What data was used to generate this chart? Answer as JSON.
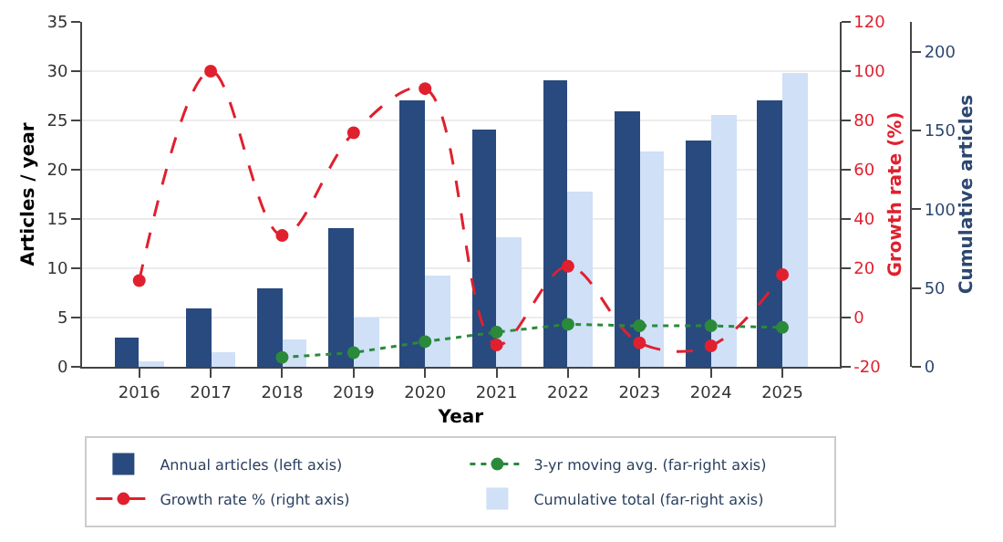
{
  "chart_data": {
    "type": "bar",
    "categories": [
      "2016",
      "2017",
      "2018",
      "2019",
      "2020",
      "2021",
      "2022",
      "2023",
      "2024",
      "2025"
    ],
    "xlabel": "Year",
    "ylabel": "Articles / year",
    "y2label": "Growth rate (%)",
    "y3label": "Cumulative articles",
    "series": [
      {
        "name": "Annual articles (left axis)",
        "color": "#284a7e",
        "values": [
          3,
          6,
          8,
          14,
          27,
          24,
          29,
          26,
          23,
          27
        ]
      },
      {
        "name": "Cumulative total (far-right axis)",
        "axis": "y3",
        "color": "#cfe0f7",
        "values": [
          3,
          9,
          17,
          31,
          58,
          82,
          111,
          137,
          160,
          187
        ]
      },
      {
        "name": "Growth rate % (right axis)",
        "type": "line",
        "axis": "y2",
        "color": "#e0202e",
        "marker": "circle",
        "line_style": "dashed",
        "values": [
          15,
          100,
          33.3,
          75,
          92.9,
          -11.1,
          20.8,
          -10.3,
          -11.5,
          17.4
        ]
      },
      {
        "name": "3-yr moving avg. (far-right axis)",
        "type": "line",
        "axis": "y3",
        "color": "#2a8a3a",
        "marker": "circle",
        "line_style": "dotted",
        "values": [
          null,
          null,
          6,
          9,
          16,
          22,
          27,
          26,
          26,
          25
        ]
      }
    ],
    "ylim": [
      0,
      35
    ],
    "yticks": [
      0,
      5,
      10,
      15,
      20,
      25,
      30,
      35
    ],
    "y2lim": [
      -20,
      120
    ],
    "y2ticks": [
      -20,
      0,
      20,
      40,
      60,
      80,
      100,
      120
    ],
    "y3lim": [
      0,
      219
    ],
    "y3ticks": [
      0,
      50,
      100,
      150,
      200
    ],
    "grid": "y",
    "legend": "bottom"
  }
}
